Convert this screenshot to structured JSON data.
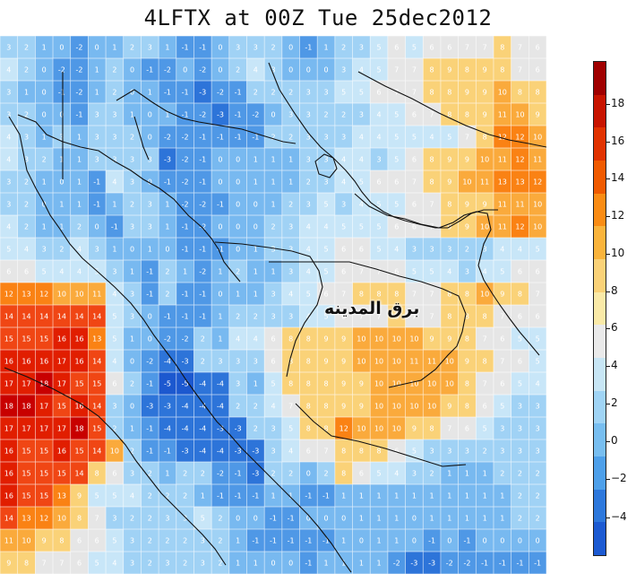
{
  "title": "4LFTX at 00Z Tue 25dec2012",
  "watermark": "برق المدينه",
  "colorbar": {
    "ticks": [
      "18",
      "16",
      "14",
      "12",
      "10",
      "8",
      "6",
      "4",
      "2",
      "0",
      "−2",
      "−4"
    ],
    "colors": [
      "#a00000",
      "#c81400",
      "#e13200",
      "#f05a00",
      "#fa8c14",
      "#fab43c",
      "#fad278",
      "#faeaa8",
      "#eaeaea",
      "#c8e6f5",
      "#a0d4f5",
      "#78bef0",
      "#4ea0ea",
      "#2d78dc",
      "#1c5ad2"
    ]
  },
  "map": {
    "grid_rows": [
      [
        3,
        2,
        1,
        0,
        -2,
        0,
        1,
        2,
        3,
        1,
        -1,
        -1,
        0,
        3,
        3,
        2,
        0,
        -1,
        1,
        2,
        3,
        5,
        6,
        5,
        6,
        6,
        7,
        7,
        8,
        7,
        6
      ],
      [
        4,
        2,
        0,
        -2,
        -2,
        1,
        2,
        0,
        -1,
        -2,
        0,
        -2,
        0,
        2,
        4,
        3,
        0,
        0,
        0,
        3,
        4,
        5,
        7,
        7,
        8,
        9,
        8,
        9,
        8,
        7,
        6
      ],
      [
        3,
        1,
        0,
        -1,
        -2,
        1,
        2,
        0,
        1,
        -1,
        -1,
        -3,
        -2,
        -1,
        2,
        2,
        2,
        3,
        3,
        5,
        5,
        6,
        7,
        7,
        8,
        8,
        9,
        9,
        10,
        8,
        8
      ],
      [
        3,
        2,
        0,
        0,
        -1,
        3,
        3,
        1,
        0,
        1,
        -1,
        -2,
        -3,
        -1,
        -2,
        0,
        3,
        3,
        2,
        2,
        3,
        4,
        5,
        6,
        7,
        8,
        8,
        9,
        11,
        10,
        9
      ],
      [
        4,
        3,
        1,
        3,
        1,
        3,
        3,
        2,
        0,
        -2,
        -2,
        -1,
        -1,
        -1,
        -1,
        2,
        2,
        3,
        3,
        3,
        4,
        4,
        5,
        5,
        4,
        5,
        7,
        8,
        12,
        12,
        10
      ],
      [
        4,
        3,
        2,
        1,
        1,
        3,
        3,
        3,
        3,
        -3,
        -2,
        -1,
        0,
        0,
        1,
        1,
        1,
        3,
        3,
        4,
        4,
        3,
        5,
        6,
        8,
        9,
        9,
        10,
        11,
        12,
        11
      ],
      [
        3,
        2,
        1,
        0,
        1,
        -1,
        4,
        3,
        0,
        -1,
        -2,
        -1,
        0,
        0,
        1,
        1,
        1,
        2,
        3,
        4,
        5,
        6,
        6,
        7,
        8,
        9,
        10,
        11,
        13,
        13,
        12
      ],
      [
        3,
        2,
        0,
        1,
        1,
        -1,
        1,
        2,
        3,
        1,
        -2,
        -2,
        -1,
        0,
        0,
        1,
        2,
        3,
        5,
        3,
        4,
        5,
        5,
        6,
        7,
        8,
        9,
        9,
        11,
        11,
        10
      ],
      [
        4,
        2,
        1,
        1,
        2,
        0,
        -1,
        3,
        3,
        1,
        -1,
        -2,
        0,
        0,
        0,
        2,
        3,
        4,
        4,
        5,
        5,
        5,
        6,
        6,
        7,
        9,
        9,
        10,
        11,
        12,
        10
      ],
      [
        5,
        4,
        3,
        2,
        4,
        3,
        1,
        0,
        1,
        0,
        -1,
        -1,
        -1,
        0,
        1,
        3,
        3,
        4,
        5,
        6,
        6,
        5,
        4,
        3,
        3,
        3,
        2,
        3,
        4,
        4,
        5
      ],
      [
        6,
        6,
        5,
        4,
        4,
        5,
        3,
        1,
        -1,
        2,
        1,
        -2,
        1,
        2,
        1,
        1,
        3,
        4,
        5,
        6,
        7,
        7,
        6,
        5,
        5,
        4,
        3,
        4,
        5,
        6,
        6
      ],
      [
        12,
        13,
        12,
        10,
        10,
        11,
        4,
        3,
        -1,
        2,
        -1,
        -1,
        0,
        1,
        1,
        3,
        4,
        5,
        6,
        7,
        8,
        8,
        8,
        7,
        7,
        8,
        8,
        10,
        9,
        8,
        7
      ],
      [
        14,
        14,
        14,
        14,
        14,
        14,
        5,
        3,
        0,
        -1,
        -1,
        -1,
        1,
        2,
        2,
        3,
        3,
        4,
        5,
        6,
        7,
        7,
        8,
        7,
        7,
        8,
        8,
        8,
        7,
        6,
        6
      ],
      [
        15,
        15,
        15,
        16,
        16,
        13,
        5,
        1,
        0,
        -2,
        -2,
        2,
        1,
        4,
        4,
        6,
        8,
        8,
        9,
        9,
        10,
        10,
        10,
        10,
        9,
        9,
        8,
        7,
        6,
        5,
        5
      ],
      [
        16,
        16,
        16,
        17,
        16,
        14,
        4,
        0,
        -2,
        -4,
        -3,
        2,
        3,
        3,
        3,
        6,
        8,
        8,
        9,
        9,
        10,
        10,
        10,
        11,
        11,
        10,
        9,
        8,
        7,
        6,
        5
      ],
      [
        17,
        17,
        18,
        17,
        15,
        15,
        6,
        2,
        -1,
        -5,
        -5,
        -4,
        -4,
        3,
        1,
        5,
        8,
        8,
        8,
        9,
        9,
        10,
        10,
        10,
        10,
        10,
        8,
        7,
        6,
        5,
        4
      ],
      [
        18,
        18,
        17,
        15,
        16,
        14,
        3,
        0,
        -3,
        -3,
        -4,
        -4,
        -4,
        2,
        2,
        4,
        7,
        8,
        8,
        9,
        9,
        10,
        10,
        10,
        10,
        9,
        8,
        6,
        5,
        3,
        3
      ],
      [
        17,
        17,
        17,
        17,
        18,
        15,
        2,
        1,
        -1,
        -4,
        -4,
        -4,
        -3,
        -3,
        2,
        3,
        5,
        8,
        8,
        12,
        10,
        10,
        10,
        9,
        8,
        7,
        6,
        5,
        3,
        3,
        3
      ],
      [
        16,
        15,
        15,
        16,
        15,
        14,
        10,
        2,
        -1,
        -1,
        -3,
        -4,
        -4,
        -3,
        -3,
        3,
        4,
        6,
        7,
        8,
        8,
        8,
        6,
        5,
        3,
        3,
        3,
        2,
        3,
        3,
        3
      ],
      [
        16,
        15,
        15,
        15,
        14,
        8,
        6,
        3,
        2,
        1,
        2,
        2,
        -2,
        -1,
        -3,
        2,
        2,
        0,
        2,
        8,
        6,
        5,
        4,
        3,
        2,
        1,
        1,
        1,
        2,
        2,
        2
      ],
      [
        16,
        15,
        15,
        13,
        9,
        5,
        5,
        4,
        2,
        2,
        2,
        1,
        -1,
        -1,
        -1,
        1,
        1,
        -1,
        -1,
        1,
        1,
        1,
        1,
        1,
        1,
        1,
        1,
        1,
        1,
        2,
        2
      ],
      [
        14,
        13,
        12,
        10,
        8,
        7,
        3,
        2,
        2,
        3,
        3,
        5,
        2,
        0,
        0,
        -1,
        -1,
        0,
        0,
        0,
        1,
        1,
        1,
        0,
        1,
        1,
        1,
        1,
        1,
        2,
        2
      ],
      [
        11,
        10,
        9,
        8,
        6,
        6,
        5,
        3,
        2,
        2,
        2,
        3,
        2,
        1,
        -1,
        -1,
        -1,
        -1,
        -1,
        1,
        0,
        1,
        1,
        0,
        -1,
        0,
        -1,
        0,
        0,
        0,
        0
      ],
      [
        9,
        8,
        7,
        7,
        6,
        5,
        4,
        3,
        2,
        3,
        2,
        3,
        2,
        1,
        1,
        0,
        0,
        -1,
        1,
        1,
        1,
        1,
        -2,
        -3,
        -3,
        -2,
        -2,
        -1,
        -1,
        -1,
        -1
      ]
    ]
  }
}
